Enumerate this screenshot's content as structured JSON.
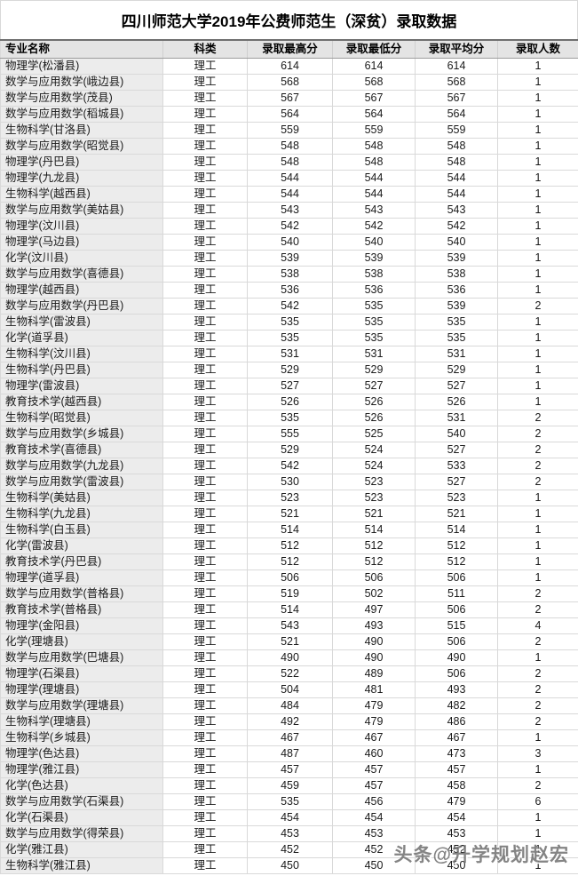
{
  "title": "四川师范大学2019年公费师范生（深贫）录取数据",
  "watermark": "头条@升学规划赵宏",
  "table": {
    "headers": [
      "专业名称",
      "科类",
      "录取最高分",
      "录取最低分",
      "录取平均分",
      "录取人数"
    ],
    "rows": [
      [
        "物理学(松潘县)",
        "理工",
        614,
        614,
        614,
        1
      ],
      [
        "数学与应用数学(峨边县)",
        "理工",
        568,
        568,
        568,
        1
      ],
      [
        "数学与应用数学(茂县)",
        "理工",
        567,
        567,
        567,
        1
      ],
      [
        "数学与应用数学(稻城县)",
        "理工",
        564,
        564,
        564,
        1
      ],
      [
        "生物科学(甘洛县)",
        "理工",
        559,
        559,
        559,
        1
      ],
      [
        "数学与应用数学(昭觉县)",
        "理工",
        548,
        548,
        548,
        1
      ],
      [
        "物理学(丹巴县)",
        "理工",
        548,
        548,
        548,
        1
      ],
      [
        "物理学(九龙县)",
        "理工",
        544,
        544,
        544,
        1
      ],
      [
        "生物科学(越西县)",
        "理工",
        544,
        544,
        544,
        1
      ],
      [
        "数学与应用数学(美姑县)",
        "理工",
        543,
        543,
        543,
        1
      ],
      [
        "物理学(汶川县)",
        "理工",
        542,
        542,
        542,
        1
      ],
      [
        "物理学(马边县)",
        "理工",
        540,
        540,
        540,
        1
      ],
      [
        "化学(汶川县)",
        "理工",
        539,
        539,
        539,
        1
      ],
      [
        "数学与应用数学(喜德县)",
        "理工",
        538,
        538,
        538,
        1
      ],
      [
        "物理学(越西县)",
        "理工",
        536,
        536,
        536,
        1
      ],
      [
        "数学与应用数学(丹巴县)",
        "理工",
        542,
        535,
        539,
        2
      ],
      [
        "生物科学(雷波县)",
        "理工",
        535,
        535,
        535,
        1
      ],
      [
        "化学(道孚县)",
        "理工",
        535,
        535,
        535,
        1
      ],
      [
        "生物科学(汶川县)",
        "理工",
        531,
        531,
        531,
        1
      ],
      [
        "生物科学(丹巴县)",
        "理工",
        529,
        529,
        529,
        1
      ],
      [
        "物理学(雷波县)",
        "理工",
        527,
        527,
        527,
        1
      ],
      [
        "教育技术学(越西县)",
        "理工",
        526,
        526,
        526,
        1
      ],
      [
        "生物科学(昭觉县)",
        "理工",
        535,
        526,
        531,
        2
      ],
      [
        "数学与应用数学(乡城县)",
        "理工",
        555,
        525,
        540,
        2
      ],
      [
        "教育技术学(喜德县)",
        "理工",
        529,
        524,
        527,
        2
      ],
      [
        "数学与应用数学(九龙县)",
        "理工",
        542,
        524,
        533,
        2
      ],
      [
        "数学与应用数学(雷波县)",
        "理工",
        530,
        523,
        527,
        2
      ],
      [
        "生物科学(美姑县)",
        "理工",
        523,
        523,
        523,
        1
      ],
      [
        "生物科学(九龙县)",
        "理工",
        521,
        521,
        521,
        1
      ],
      [
        "生物科学(白玉县)",
        "理工",
        514,
        514,
        514,
        1
      ],
      [
        "化学(雷波县)",
        "理工",
        512,
        512,
        512,
        1
      ],
      [
        "教育技术学(丹巴县)",
        "理工",
        512,
        512,
        512,
        1
      ],
      [
        "物理学(道孚县)",
        "理工",
        506,
        506,
        506,
        1
      ],
      [
        "数学与应用数学(普格县)",
        "理工",
        519,
        502,
        511,
        2
      ],
      [
        "教育技术学(普格县)",
        "理工",
        514,
        497,
        506,
        2
      ],
      [
        "物理学(金阳县)",
        "理工",
        543,
        493,
        515,
        4
      ],
      [
        "化学(理塘县)",
        "理工",
        521,
        490,
        506,
        2
      ],
      [
        "数学与应用数学(巴塘县)",
        "理工",
        490,
        490,
        490,
        1
      ],
      [
        "物理学(石渠县)",
        "理工",
        522,
        489,
        506,
        2
      ],
      [
        "物理学(理塘县)",
        "理工",
        504,
        481,
        493,
        2
      ],
      [
        "数学与应用数学(理塘县)",
        "理工",
        484,
        479,
        482,
        2
      ],
      [
        "生物科学(理塘县)",
        "理工",
        492,
        479,
        486,
        2
      ],
      [
        "生物科学(乡城县)",
        "理工",
        467,
        467,
        467,
        1
      ],
      [
        "物理学(色达县)",
        "理工",
        487,
        460,
        473,
        3
      ],
      [
        "物理学(雅江县)",
        "理工",
        457,
        457,
        457,
        1
      ],
      [
        "化学(色达县)",
        "理工",
        459,
        457,
        458,
        2
      ],
      [
        "数学与应用数学(石渠县)",
        "理工",
        535,
        456,
        479,
        6
      ],
      [
        "化学(石渠县)",
        "理工",
        454,
        454,
        454,
        1
      ],
      [
        "数学与应用数学(得荣县)",
        "理工",
        453,
        453,
        453,
        1
      ],
      [
        "化学(雅江县)",
        "理工",
        452,
        452,
        452,
        1
      ],
      [
        "生物科学(雅江县)",
        "理工",
        450,
        450,
        450,
        1
      ]
    ]
  }
}
